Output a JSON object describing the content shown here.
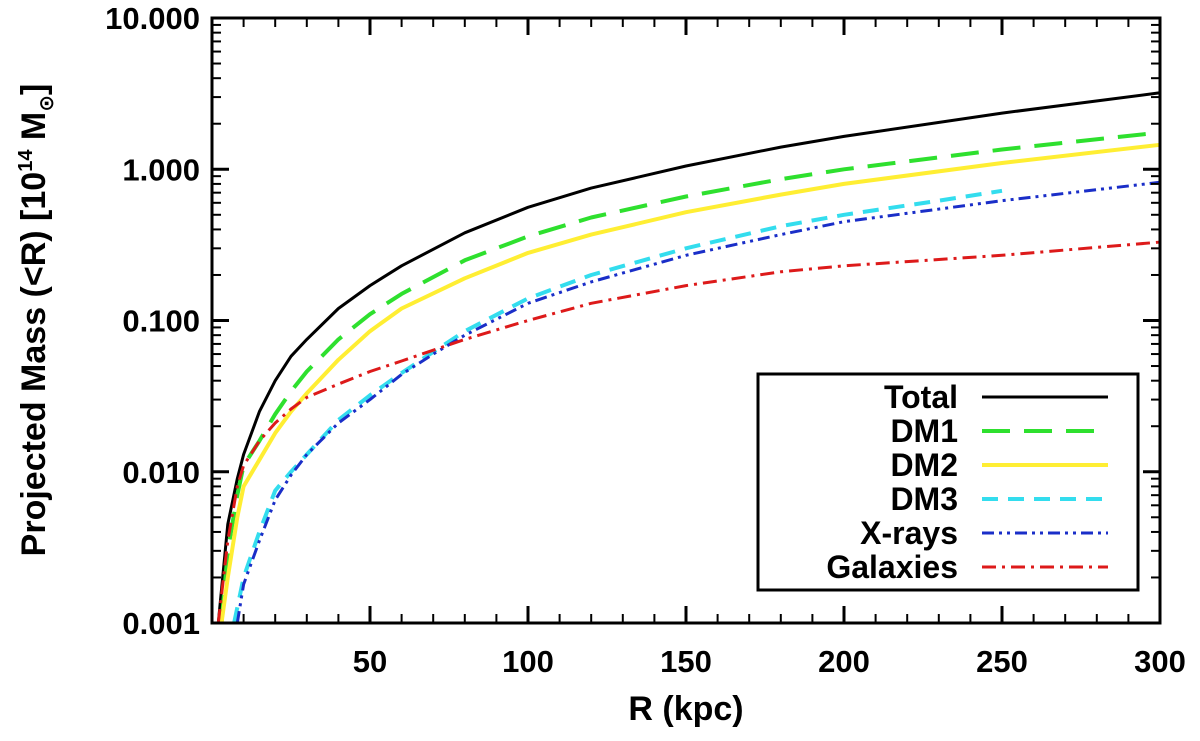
{
  "chart_data": {
    "type": "line",
    "title": "",
    "xlabel": "R (kpc)",
    "ylabel": {
      "prefix": "Projected Mass (<R) [10",
      "exponent": "14",
      "unit": " M",
      "subscript": "⊙",
      "suffix": "]"
    },
    "xlim": [
      0,
      300
    ],
    "ylim": [
      0.001,
      10
    ],
    "yscale": "log",
    "xticks": [
      50,
      100,
      150,
      200,
      250,
      300
    ],
    "xtick_labels": [
      "50",
      "100",
      "150",
      "200",
      "250",
      "300"
    ],
    "yticks": [
      0.001,
      0.01,
      0.1,
      1,
      10
    ],
    "ytick_labels": [
      "0.001",
      "0.010",
      "0.100",
      "1.000",
      "10.000"
    ],
    "legend_position": "bottom-right",
    "series": [
      {
        "name": "Total",
        "color": "#000000",
        "dash": "solid",
        "x": [
          2,
          5,
          8,
          10,
          15,
          20,
          25,
          30,
          40,
          50,
          60,
          80,
          100,
          120,
          150,
          180,
          200,
          250,
          300
        ],
        "y": [
          0.001,
          0.0045,
          0.009,
          0.013,
          0.025,
          0.04,
          0.058,
          0.075,
          0.12,
          0.17,
          0.23,
          0.38,
          0.56,
          0.75,
          1.05,
          1.4,
          1.65,
          2.35,
          3.2
        ]
      },
      {
        "name": "DM1",
        "color": "#2ee02e",
        "dash": "long-dash",
        "x": [
          3,
          5,
          8,
          10,
          15,
          20,
          25,
          30,
          40,
          50,
          60,
          80,
          100,
          120,
          150,
          180,
          200,
          250,
          300
        ],
        "y": [
          0.001,
          0.003,
          0.007,
          0.011,
          0.016,
          0.024,
          0.034,
          0.046,
          0.075,
          0.11,
          0.15,
          0.25,
          0.36,
          0.48,
          0.66,
          0.86,
          1.0,
          1.35,
          1.75
        ]
      },
      {
        "name": "DM2",
        "color": "#ffee33",
        "dash": "solid",
        "x": [
          3,
          5,
          8,
          10,
          15,
          20,
          25,
          30,
          40,
          50,
          60,
          80,
          100,
          120,
          150,
          180,
          200,
          250,
          300
        ],
        "y": [
          0.001,
          0.002,
          0.005,
          0.008,
          0.012,
          0.018,
          0.025,
          0.033,
          0.055,
          0.085,
          0.12,
          0.19,
          0.28,
          0.37,
          0.52,
          0.68,
          0.8,
          1.1,
          1.45
        ]
      },
      {
        "name": "DM3",
        "color": "#33ddee",
        "dash": "dash",
        "x": [
          7,
          10,
          15,
          20,
          25,
          30,
          40,
          50,
          60,
          70,
          80,
          100,
          120,
          150,
          180,
          200,
          230,
          250
        ],
        "y": [
          0.001,
          0.002,
          0.004,
          0.0075,
          0.01,
          0.013,
          0.022,
          0.032,
          0.045,
          0.062,
          0.085,
          0.14,
          0.2,
          0.3,
          0.42,
          0.5,
          0.62,
          0.72
        ]
      },
      {
        "name": "X-rays",
        "color": "#1a2ec8",
        "dash": "dash-dot-dot",
        "x": [
          8,
          10,
          15,
          20,
          25,
          30,
          40,
          50,
          60,
          70,
          80,
          100,
          120,
          150,
          180,
          200,
          250,
          300
        ],
        "y": [
          0.001,
          0.0018,
          0.0035,
          0.0065,
          0.0095,
          0.013,
          0.021,
          0.03,
          0.044,
          0.06,
          0.08,
          0.13,
          0.18,
          0.27,
          0.37,
          0.45,
          0.62,
          0.82
        ]
      },
      {
        "name": "Galaxies",
        "color": "#dd1a1a",
        "dash": "dash-dot",
        "x": [
          2,
          5,
          8,
          10,
          15,
          20,
          25,
          30,
          40,
          50,
          60,
          80,
          100,
          120,
          150,
          180,
          200,
          250,
          300
        ],
        "y": [
          0.001,
          0.0035,
          0.008,
          0.011,
          0.016,
          0.021,
          0.026,
          0.031,
          0.038,
          0.046,
          0.054,
          0.075,
          0.1,
          0.13,
          0.17,
          0.21,
          0.23,
          0.27,
          0.33
        ]
      }
    ]
  }
}
